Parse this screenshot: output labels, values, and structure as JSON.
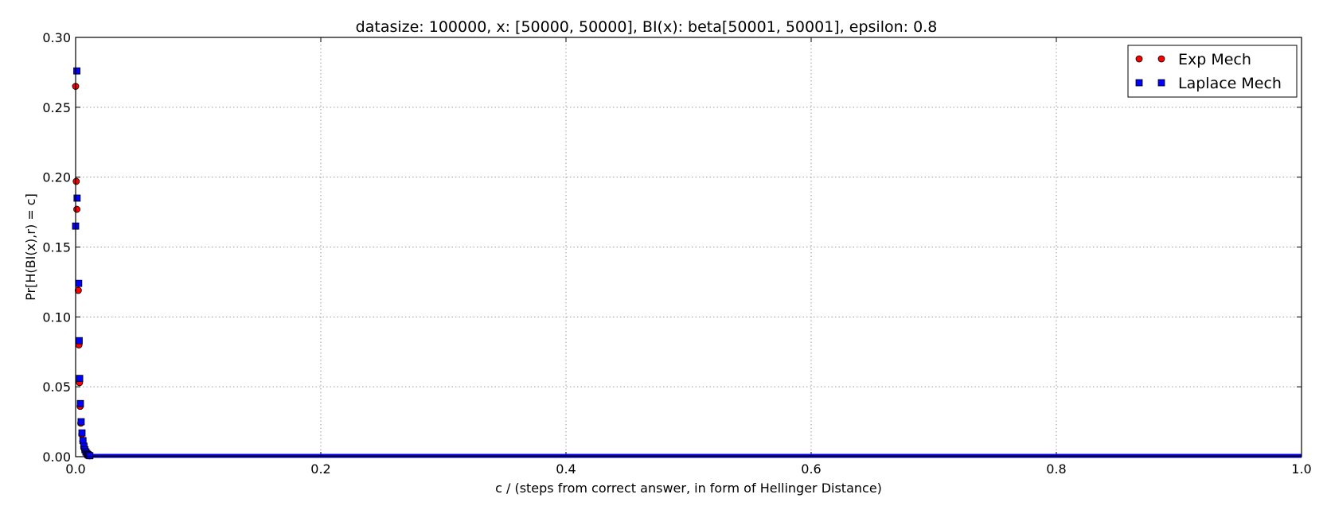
{
  "chart_data": {
    "type": "scatter",
    "title": "datasize: 100000, x: [50000, 50000], BI(x): beta[50001, 50001], epsilon: 0.8",
    "xlabel": "c / (steps from correct answer, in form of Hellinger Distance)",
    "ylabel": "Pr[H(BI(x),r) = c]",
    "xlim": [
      0.0,
      1.0
    ],
    "ylim": [
      0.0,
      0.3
    ],
    "x_ticks": [
      "0.0",
      "0.2",
      "0.4",
      "0.6",
      "0.8",
      "1.0"
    ],
    "y_ticks": [
      "0.00",
      "0.05",
      "0.10",
      "0.15",
      "0.20",
      "0.25",
      "0.30"
    ],
    "grid": true,
    "legend_position": "top-right",
    "series": [
      {
        "name": "Exp Mech",
        "marker": "circle",
        "color": "#ff0000",
        "x": [
          0.0,
          0.0005,
          0.001,
          0.0022,
          0.0027,
          0.0032,
          0.0037,
          0.0042,
          0.005,
          0.0058,
          0.0066,
          0.0074,
          0.0082,
          0.009,
          0.0098,
          0.0106,
          0.0114
        ],
        "y": [
          0.265,
          0.197,
          0.177,
          0.119,
          0.08,
          0.053,
          0.036,
          0.024,
          0.016,
          0.011,
          0.007,
          0.0048,
          0.0032,
          0.0021,
          0.0014,
          0.0009,
          0.0006
        ]
      },
      {
        "name": "Laplace Mech",
        "marker": "square",
        "color": "#0000ff",
        "x": [
          0.001,
          0.0012,
          0.0,
          0.0025,
          0.0029,
          0.0033,
          0.0039,
          0.0045,
          0.0052,
          0.006,
          0.0068,
          0.0076,
          0.0084,
          0.0092,
          0.01,
          0.0108,
          0.0116
        ],
        "y": [
          0.276,
          0.185,
          0.165,
          0.124,
          0.083,
          0.056,
          0.038,
          0.025,
          0.017,
          0.0115,
          0.0075,
          0.005,
          0.0034,
          0.0022,
          0.0015,
          0.001,
          0.0007
        ]
      }
    ],
    "tail_baseline": {
      "x_from": 0.012,
      "x_to": 1.0,
      "y": 0.0
    }
  }
}
